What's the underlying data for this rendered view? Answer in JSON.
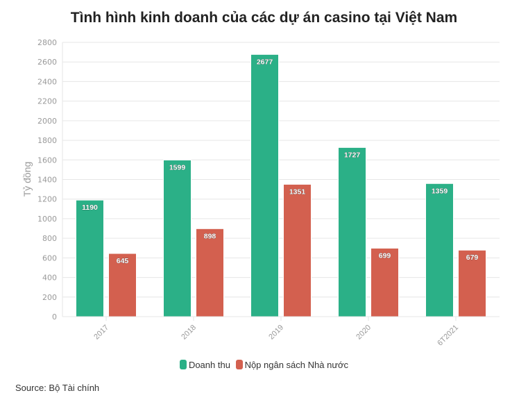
{
  "chart_data": {
    "type": "bar",
    "title": "Tình hình kinh doanh của các dự án casino tại Việt Nam",
    "ylabel": "Tỷ đồng",
    "xlabel": "",
    "categories": [
      "2017",
      "2018",
      "2019",
      "2020",
      "6T2021"
    ],
    "series": [
      {
        "name": "Doanh thu",
        "color": "#2bb087",
        "values": [
          1190,
          1599,
          2677,
          1727,
          1359
        ]
      },
      {
        "name": "Nộp ngân sách Nhà nước",
        "color": "#d3604f",
        "values": [
          645,
          898,
          1351,
          699,
          679
        ]
      }
    ],
    "ylim": [
      0,
      2800
    ],
    "yticks": [
      0,
      200,
      400,
      600,
      800,
      1000,
      1200,
      1400,
      1600,
      1800,
      2000,
      2200,
      2400,
      2600,
      2800
    ],
    "grid": true,
    "legend": "bottom",
    "source": "Source: Bộ Tài chính"
  }
}
